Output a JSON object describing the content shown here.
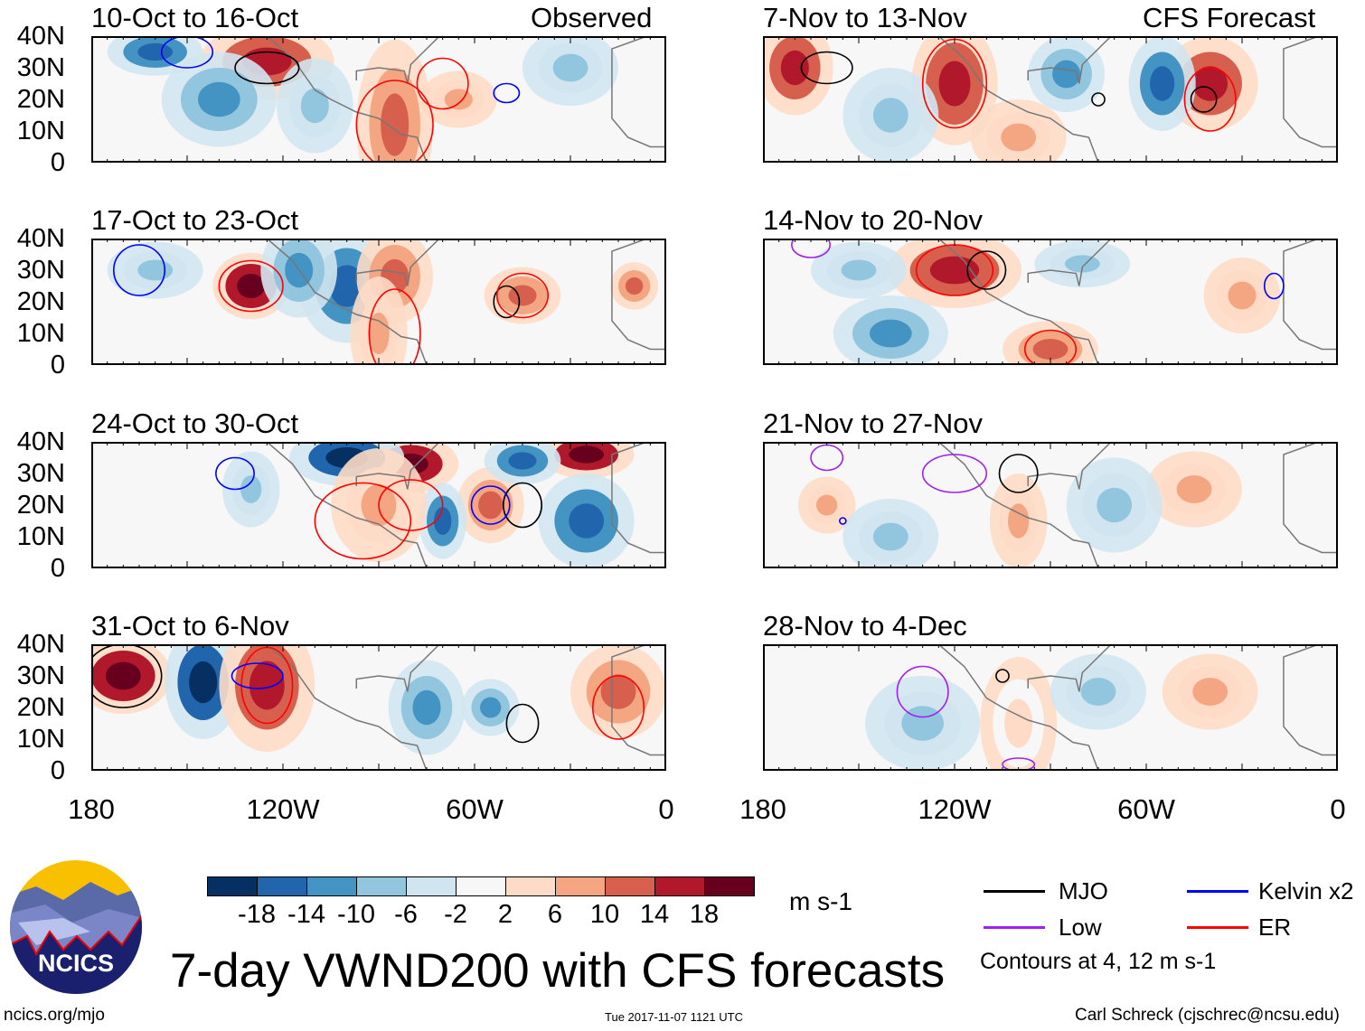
{
  "headers": {
    "left": "Observed",
    "right": "CFS Forecast"
  },
  "panels": [
    {
      "title": "10-Oct to 16-Oct"
    },
    {
      "title": "17-Oct to 23-Oct"
    },
    {
      "title": "24-Oct to 30-Oct"
    },
    {
      "title": "31-Oct to 6-Nov"
    },
    {
      "title": "7-Nov to 13-Nov"
    },
    {
      "title": "14-Nov to 20-Nov"
    },
    {
      "title": "21-Nov to 27-Nov"
    },
    {
      "title": "28-Nov to 4-Dec"
    }
  ],
  "lat_labels": [
    "40N",
    "30N",
    "20N",
    "10N",
    "0"
  ],
  "lon_labels": [
    "180",
    "120W",
    "60W",
    "0"
  ],
  "colorbar": {
    "colors": [
      "#053061",
      "#2166ac",
      "#4393c3",
      "#92c5de",
      "#d1e5f0",
      "#f7f7f7",
      "#fddbc7",
      "#f4a582",
      "#d6604d",
      "#b2182b",
      "#67001f"
    ],
    "ticks": [
      "-18",
      "-14",
      "-10",
      "-6",
      "-2",
      "2",
      "6",
      "10",
      "14",
      "18"
    ],
    "units": "m s-1"
  },
  "legend": {
    "items": [
      {
        "label": "MJO",
        "color": "#000000"
      },
      {
        "label": "Kelvin x2",
        "color": "#0000ff"
      },
      {
        "label": "Low",
        "color": "#a020f0"
      },
      {
        "label": "ER",
        "color": "#ff0000"
      }
    ],
    "note": "Contours at 4, 12 m s-1"
  },
  "logo": {
    "text": "NCICS"
  },
  "title": "7-day VWND200 with CFS forecasts",
  "footer": {
    "left": "ncics.org/mjo",
    "center": "Tue 2017-11-07 1121 UTC",
    "right": "Carl Schreck (cjschrec@ncsu.edu)"
  }
}
